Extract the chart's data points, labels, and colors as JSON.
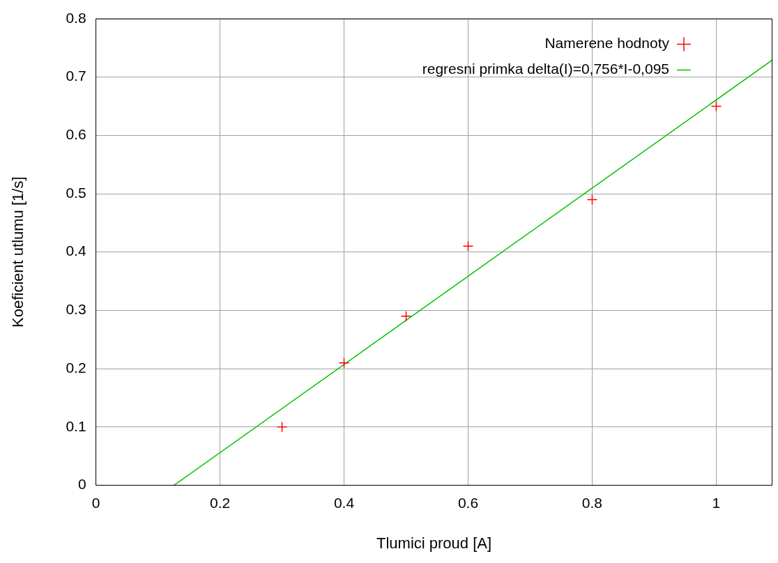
{
  "chart_data": {
    "type": "scatter",
    "xlabel": "Tlumici proud [A]",
    "ylabel": "Koeficient utlumu [1/s]",
    "xlim": [
      0,
      1.09
    ],
    "xticks": [
      0,
      0.2,
      0.4,
      0.6,
      0.8,
      1
    ],
    "ylim": [
      0,
      0.8
    ],
    "yticks": [
      0,
      0.1,
      0.2,
      0.3,
      0.4,
      0.5,
      0.6,
      0.7,
      0.8
    ],
    "grid": true,
    "legend": "top right",
    "series": [
      {
        "name": "Namerene hodnoty",
        "type": "scatter",
        "marker": "cross",
        "color": "#ff0000",
        "x": [
          0.3,
          0.4,
          0.5,
          0.6,
          0.8,
          1.0
        ],
        "values": [
          0.1,
          0.21,
          0.29,
          0.41,
          0.49,
          0.65
        ]
      },
      {
        "name": "regresni primka delta(I)=0,756*I-0,095",
        "type": "line",
        "marker": "none",
        "line_style": "solid",
        "color": "#00c000",
        "x": [
          0.126,
          1.09
        ],
        "values": [
          0,
          0.729
        ]
      }
    ]
  }
}
